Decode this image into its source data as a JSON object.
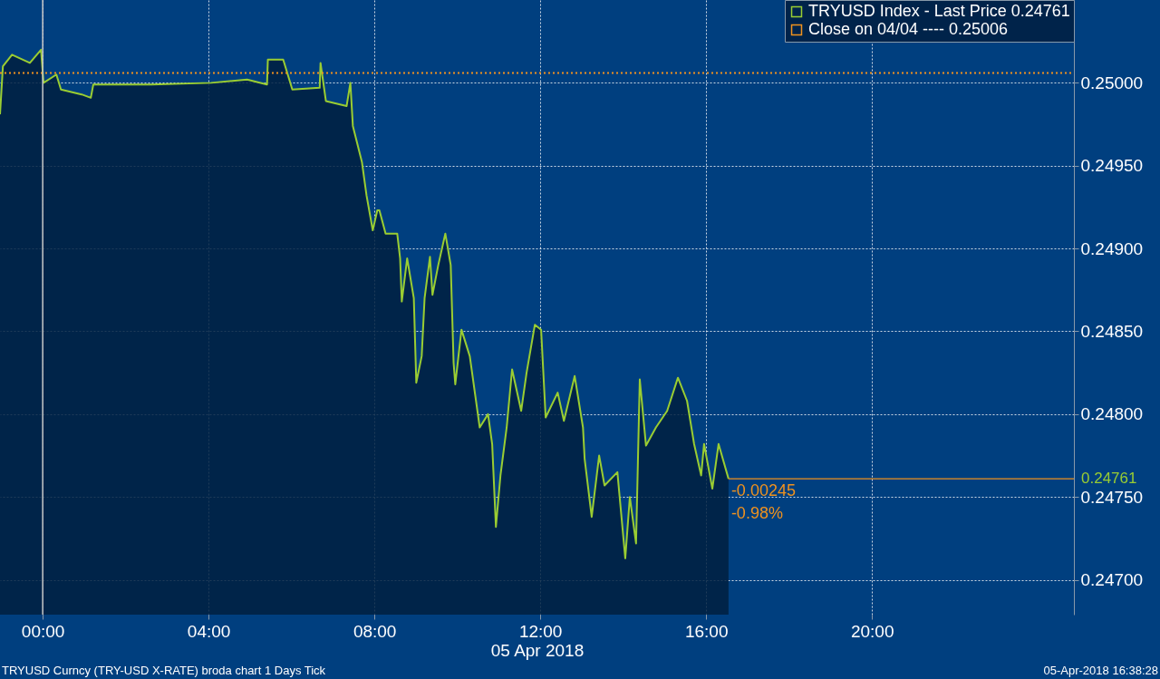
{
  "chart_data": {
    "type": "area",
    "xlabel": "05 Apr 2018",
    "xlim": [
      -1.03,
      24.87
    ],
    "ylim": [
      0.24679,
      0.2505
    ],
    "xticks": [
      {
        "value": 0,
        "label": "00:00"
      },
      {
        "value": 4,
        "label": "04:00"
      },
      {
        "value": 8,
        "label": "08:00"
      },
      {
        "value": 12,
        "label": "12:00"
      },
      {
        "value": 16,
        "label": "16:00"
      },
      {
        "value": 20,
        "label": "20:00"
      }
    ],
    "yticks": [
      {
        "value": 0.247,
        "label": "0.24700"
      },
      {
        "value": 0.2475,
        "label": "0.24750"
      },
      {
        "value": 0.248,
        "label": "0.24800"
      },
      {
        "value": 0.2485,
        "label": "0.24850"
      },
      {
        "value": 0.249,
        "label": "0.24900"
      },
      {
        "value": 0.2495,
        "label": "0.24950"
      },
      {
        "value": 0.25,
        "label": "0.25000"
      }
    ],
    "grid": true,
    "legend": "top right",
    "series": [
      {
        "color": "#00203f",
        "x": [
          -1.03,
          -0.96,
          -0.74,
          -0.31,
          -0.04,
          0.02,
          0.33,
          0.44,
          0.94,
          1.16,
          1.22,
          2.62,
          4.06,
          4.93,
          5.41,
          5.43,
          5.8,
          6.02,
          6.68,
          6.7,
          6.83,
          7.33,
          7.42,
          7.48,
          7.7,
          7.81,
          7.96,
          8.07,
          8.12,
          8.27,
          8.55,
          8.62,
          8.66,
          8.79,
          8.95,
          9.01,
          9.14,
          9.21,
          9.34,
          9.4,
          9.54,
          9.71,
          9.84,
          9.91,
          9.95,
          10.1,
          10.3,
          10.54,
          10.74,
          10.84,
          10.93,
          11.04,
          11.19,
          11.32,
          11.54,
          11.67,
          11.87,
          12.02,
          12.13,
          12.42,
          12.57,
          12.83,
          13.03,
          13.07,
          13.24,
          13.42,
          13.55,
          13.86,
          14.05,
          14.16,
          14.31,
          14.4,
          14.55,
          14.79,
          15.06,
          15.32,
          15.54,
          15.71,
          15.88,
          15.95,
          16.15,
          16.3,
          16.54
        ],
        "values": [
          0.24981,
          0.2501,
          0.25017,
          0.25012,
          0.2502,
          0.25,
          0.25005,
          0.24996,
          0.24993,
          0.24991,
          0.24999,
          0.24999,
          0.25,
          0.25002,
          0.24999,
          0.25014,
          0.25014,
          0.24996,
          0.24997,
          0.25012,
          0.24989,
          0.24986,
          0.25,
          0.24974,
          0.24952,
          0.24932,
          0.24911,
          0.24923,
          0.24923,
          0.24909,
          0.24909,
          0.24894,
          0.24868,
          0.24894,
          0.2487,
          0.24819,
          0.24835,
          0.2487,
          0.24895,
          0.24872,
          0.2489,
          0.24909,
          0.2489,
          0.24831,
          0.24818,
          0.24851,
          0.24835,
          0.24792,
          0.248,
          0.24782,
          0.24732,
          0.24763,
          0.24792,
          0.24827,
          0.24802,
          0.24825,
          0.24854,
          0.24851,
          0.24798,
          0.24813,
          0.24796,
          0.24823,
          0.24792,
          0.24773,
          0.24738,
          0.24775,
          0.24757,
          0.24765,
          0.24713,
          0.2475,
          0.24722,
          0.24821,
          0.24781,
          0.24792,
          0.24802,
          0.24822,
          0.24808,
          0.24782,
          0.24763,
          0.24782,
          0.24755,
          0.24782,
          0.24761
        ]
      },
      {
        "name": "TRYUSD Index - Last Price 0.24761",
        "color": "#9acd32",
        "type": "line",
        "x": [
          -1.03,
          -0.96,
          -0.74,
          -0.31,
          -0.04,
          0.02,
          0.33,
          0.44,
          0.94,
          1.16,
          1.22,
          2.62,
          4.06,
          4.93,
          5.41,
          5.43,
          5.8,
          6.02,
          6.68,
          6.7,
          6.83,
          7.33,
          7.42,
          7.48,
          7.7,
          7.81,
          7.96,
          8.07,
          8.12,
          8.27,
          8.55,
          8.62,
          8.66,
          8.79,
          8.95,
          9.01,
          9.14,
          9.21,
          9.34,
          9.4,
          9.54,
          9.71,
          9.84,
          9.91,
          9.95,
          10.1,
          10.3,
          10.54,
          10.74,
          10.84,
          10.93,
          11.04,
          11.19,
          11.32,
          11.54,
          11.67,
          11.87,
          12.02,
          12.13,
          12.42,
          12.57,
          12.83,
          13.03,
          13.07,
          13.24,
          13.42,
          13.55,
          13.86,
          14.05,
          14.16,
          14.31,
          14.4,
          14.55,
          14.79,
          15.06,
          15.32,
          15.54,
          15.71,
          15.88,
          15.95,
          16.15,
          16.3,
          16.54
        ],
        "values": [
          0.24981,
          0.2501,
          0.25017,
          0.25012,
          0.2502,
          0.25,
          0.25005,
          0.24996,
          0.24993,
          0.24991,
          0.24999,
          0.24999,
          0.25,
          0.25002,
          0.24999,
          0.25014,
          0.25014,
          0.24996,
          0.24997,
          0.25012,
          0.24989,
          0.24986,
          0.25,
          0.24974,
          0.24952,
          0.24932,
          0.24911,
          0.24923,
          0.24923,
          0.24909,
          0.24909,
          0.24894,
          0.24868,
          0.24894,
          0.2487,
          0.24819,
          0.24835,
          0.2487,
          0.24895,
          0.24872,
          0.2489,
          0.24909,
          0.2489,
          0.24831,
          0.24818,
          0.24851,
          0.24835,
          0.24792,
          0.248,
          0.24782,
          0.24732,
          0.24763,
          0.24792,
          0.24827,
          0.24802,
          0.24825,
          0.24854,
          0.24851,
          0.24798,
          0.24813,
          0.24796,
          0.24823,
          0.24792,
          0.24773,
          0.24738,
          0.24775,
          0.24757,
          0.24765,
          0.24713,
          0.2475,
          0.24722,
          0.24821,
          0.24781,
          0.24792,
          0.24802,
          0.24822,
          0.24808,
          0.24782,
          0.24763,
          0.24782,
          0.24755,
          0.24782,
          0.24761
        ]
      },
      {
        "name": "Close on 04/04 ----      0.25006",
        "color": "#f0921e",
        "type": "line",
        "line_style": "dotted",
        "x": [
          -1.03,
          24.87
        ],
        "values": [
          0.25006,
          0.25006
        ]
      }
    ],
    "ref_lines": [
      {
        "axis": "x",
        "value": 0,
        "color": "#c8c8c8"
      },
      {
        "axis": "y",
        "value": 0.24761,
        "label": "0.24761",
        "color": "#f0921e"
      }
    ],
    "annotations": [
      "-0.00245",
      "-0.98%",
      "TRYUSD Curncy (TRY-USD X-RATE) broda chart 1 Days  Tick",
      "05-Apr-2018 16:38:28"
    ]
  }
}
